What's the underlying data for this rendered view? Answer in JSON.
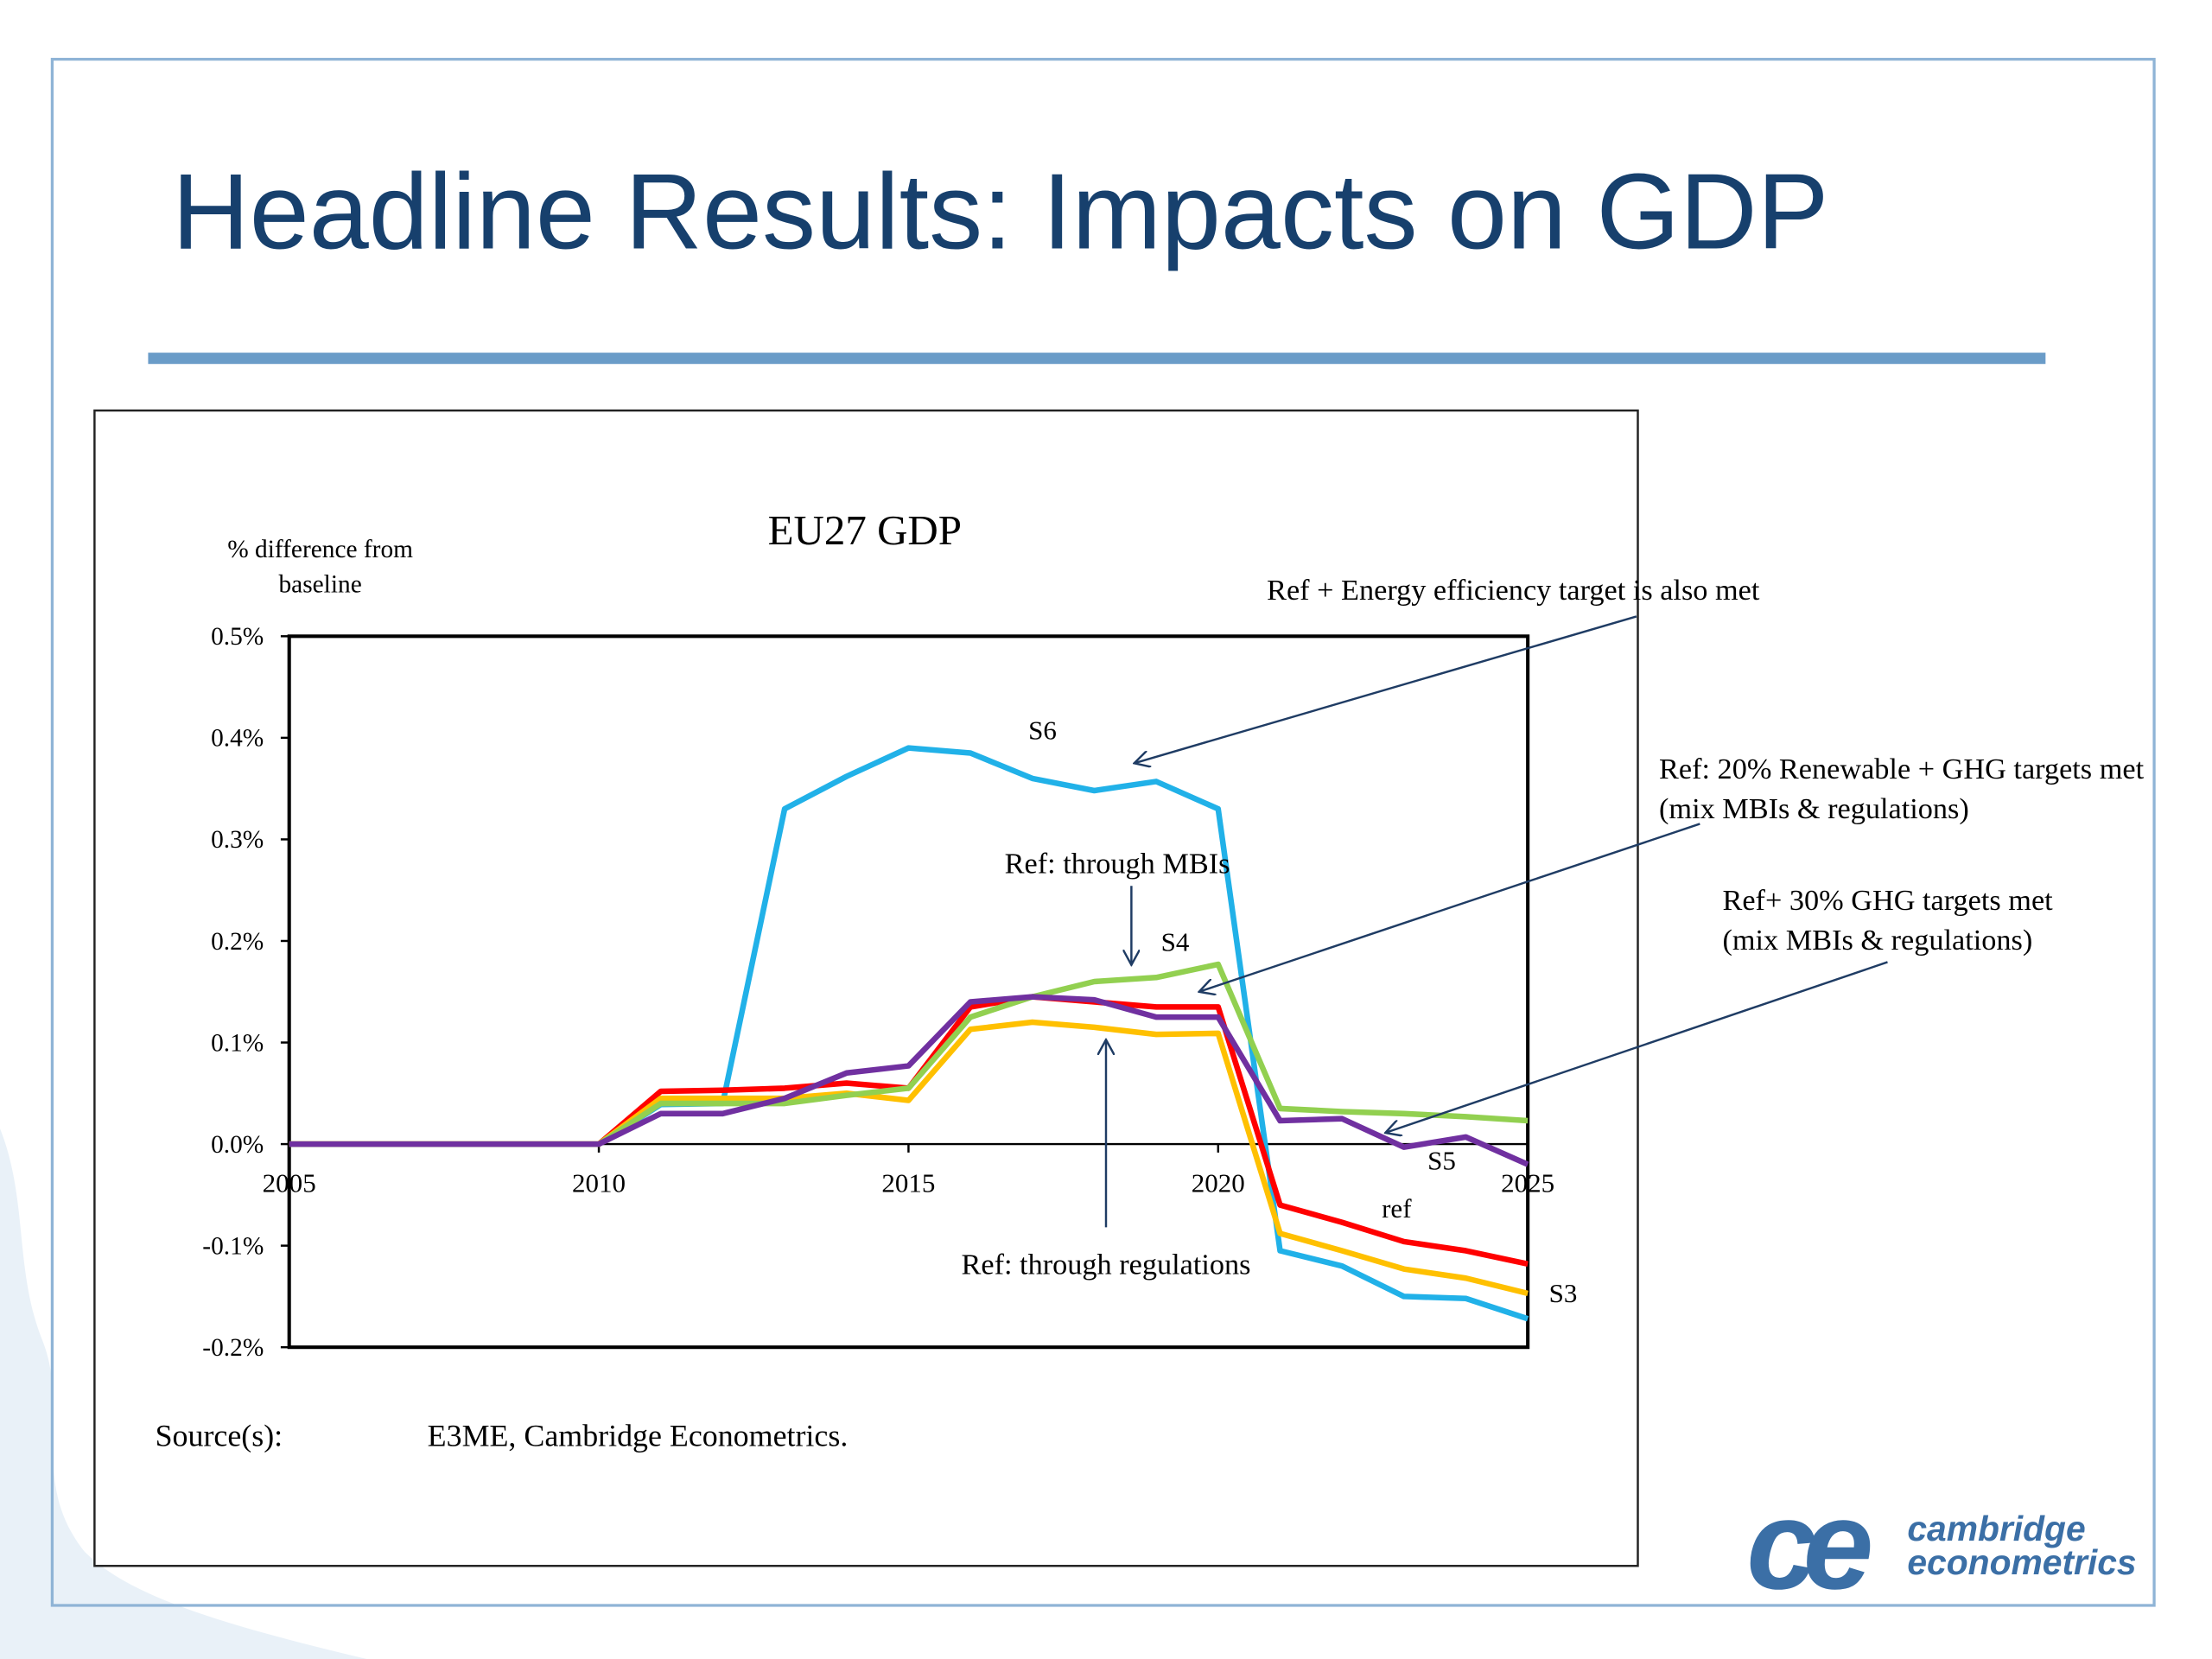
{
  "slide": {
    "title": "Headline Results: Impacts on GDP",
    "source_label": "Source(s):",
    "source": "E3ME, Cambridge Econometrics.",
    "logo": {
      "mark": "ce",
      "line1": "cambridge",
      "line2": "econometrics"
    }
  },
  "chart_data": {
    "type": "line",
    "title": "EU27 GDP",
    "y_label": [
      "% difference from",
      "baseline"
    ],
    "x": [
      2005,
      2006,
      2007,
      2008,
      2009,
      2010,
      2011,
      2012,
      2013,
      2014,
      2015,
      2016,
      2017,
      2018,
      2019,
      2020,
      2021,
      2022,
      2023,
      2024,
      2025
    ],
    "xlim": [
      2005,
      2025
    ],
    "xticks": [
      2005,
      2010,
      2015,
      2020,
      2025
    ],
    "ylim": [
      -0.2,
      0.5
    ],
    "yticks": [
      {
        "value": -0.2,
        "label": "-0.2%"
      },
      {
        "value": -0.1,
        "label": "-0.1%"
      },
      {
        "value": 0,
        "label": "0.0%"
      },
      {
        "value": 0.1,
        "label": "0.1%"
      },
      {
        "value": 0.2,
        "label": "0.2%"
      },
      {
        "value": 0.3,
        "label": "0.3%"
      },
      {
        "value": 0.4,
        "label": "0.4%"
      },
      {
        "value": 0.5,
        "label": "0.5%"
      }
    ],
    "grid": false,
    "series": [
      {
        "name": "S6",
        "color": "#21b1e8",
        "values": [
          0,
          0,
          0,
          0,
          0,
          0,
          0.039,
          0.04,
          0.33,
          0.362,
          0.39,
          0.385,
          0.36,
          0.348,
          0.357,
          0.33,
          -0.105,
          -0.12,
          -0.15,
          -0.152,
          -0.172
        ]
      },
      {
        "name": "ref",
        "color": "#ff0000",
        "values": [
          0,
          0,
          0,
          0,
          0,
          0,
          0.052,
          0.053,
          0.055,
          0.06,
          0.055,
          0.135,
          0.145,
          0.14,
          0.135,
          0.135,
          -0.06,
          -0.077,
          -0.096,
          -0.105,
          -0.118
        ]
      },
      {
        "name": "S3",
        "color": "#ffc000",
        "values": [
          0,
          0,
          0,
          0,
          0,
          0,
          0.045,
          0.045,
          0.045,
          0.05,
          0.043,
          0.113,
          0.12,
          0.115,
          0.108,
          0.109,
          -0.088,
          -0.105,
          -0.123,
          -0.132,
          -0.147
        ]
      },
      {
        "name": "S4",
        "color": "#92d050",
        "values": [
          0,
          0,
          0,
          0,
          0,
          0,
          0.04,
          0.04,
          0.04,
          0.048,
          0.055,
          0.125,
          0.145,
          0.16,
          0.164,
          0.177,
          0.035,
          0.032,
          0.03,
          0.027,
          0.023
        ]
      },
      {
        "name": "S5",
        "color": "#7030a0",
        "values": [
          0,
          0,
          0,
          0,
          0,
          0,
          0.03,
          0.03,
          0.045,
          0.07,
          0.077,
          0.14,
          0.145,
          0.142,
          0.125,
          0.125,
          0.023,
          0.025,
          -0.003,
          0.007,
          -0.02
        ]
      }
    ],
    "annotations": [
      [
        "Ref + Energy efficiency target is also met"
      ],
      [
        "Ref: 20% Renewable + GHG targets met",
        "(mix MBIs & regulations)"
      ],
      [
        "Ref+ 30% GHG targets met",
        "(mix MBIs & regulations)"
      ],
      [
        "Ref: through MBIs"
      ],
      [
        "Ref: through regulations"
      ]
    ]
  }
}
